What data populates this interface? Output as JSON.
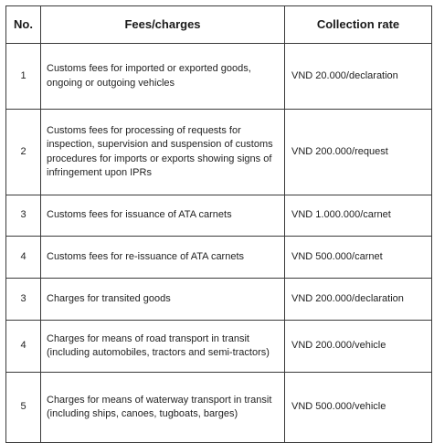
{
  "table": {
    "headers": {
      "no": "No.",
      "fee": "Fees/charges",
      "rate": "Collection rate"
    },
    "rows": [
      {
        "no": "1",
        "fee": "Customs fees for imported or exported goods, ongoing or outgoing vehicles",
        "rate": "VND 20.000/declaration"
      },
      {
        "no": "2",
        "fee": "Customs fees for processing of requests for inspection, supervision and suspension of customs procedures for imports or exports showing signs of infringement upon IPRs",
        "rate": "VND 200.000/request"
      },
      {
        "no": "3",
        "fee": "Customs fees for issuance of ATA carnets",
        "rate": "VND 1.000.000/carnet"
      },
      {
        "no": "4",
        "fee": "Customs fees for re-issuance of ATA carnets",
        "rate": "VND 500.000/carnet"
      },
      {
        "no": "3",
        "fee": "Charges for transited goods",
        "rate": "VND 200.000/declaration"
      },
      {
        "no": "4",
        "fee": "Charges for means of road transport in transit (including automobiles, tractors and semi-tractors)",
        "rate": "VND 200.000/vehicle"
      },
      {
        "no": "5",
        "fee": "Charges for means of waterway transport in transit (including ships, canoes, tugboats, barges)",
        "rate": "VND 500.000/vehicle"
      }
    ]
  }
}
